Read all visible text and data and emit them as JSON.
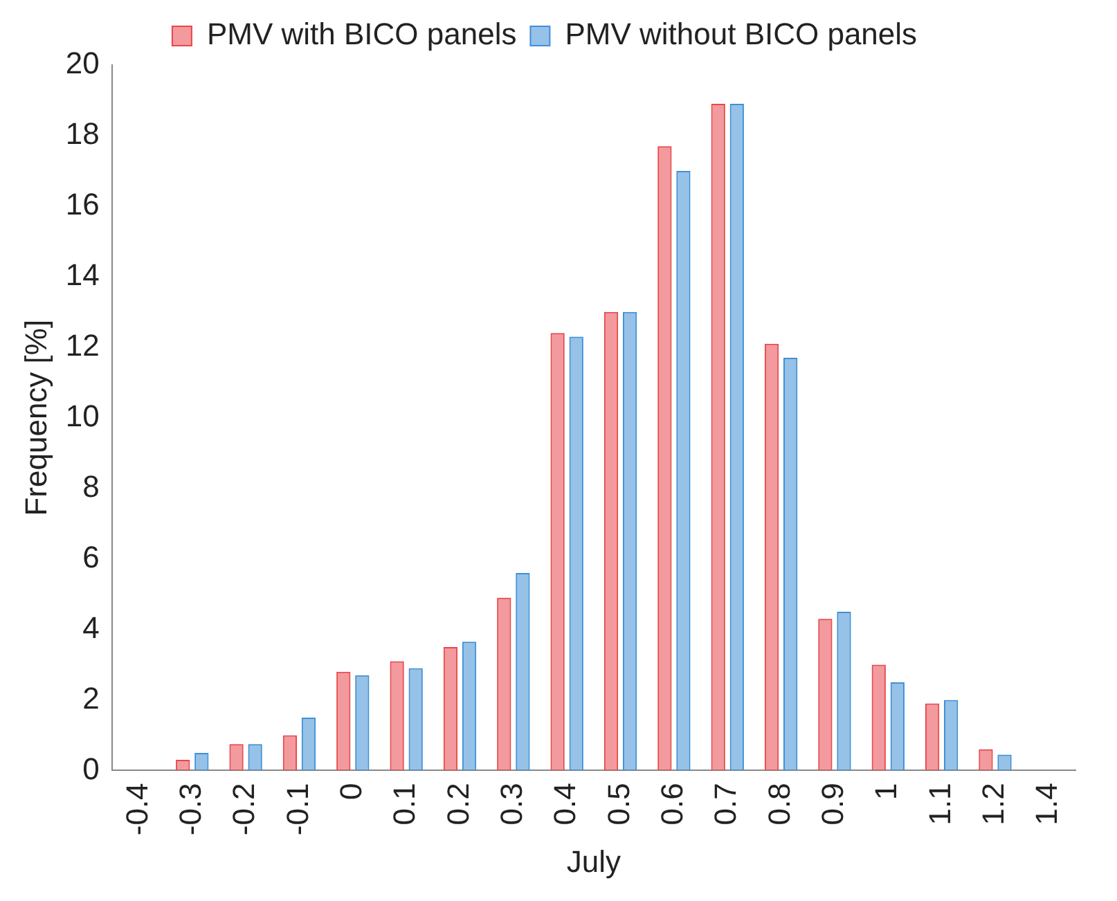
{
  "chart_data": {
    "type": "bar",
    "xlabel": "July",
    "ylabel": "Frequency [%]",
    "categories": [
      "-0.4",
      "-0.3",
      "-0.2",
      "-0.1",
      "0",
      "0.1",
      "0.2",
      "0.3",
      "0.4",
      "0.5",
      "0.6",
      "0.7",
      "0.8",
      "0.9",
      "1",
      "1.1",
      "1.2",
      "1.4"
    ],
    "series": [
      {
        "name": "PMV with BICO panels",
        "color": "#e8474c",
        "values": [
          0,
          0.3,
          0.75,
          1.0,
          2.8,
          3.1,
          3.5,
          4.9,
          12.4,
          13.0,
          17.7,
          18.9,
          12.1,
          4.3,
          3.0,
          1.9,
          0.6,
          0
        ]
      },
      {
        "name": "PMV without BICO panels",
        "color": "#3f8fd6",
        "values": [
          0,
          0.5,
          0.75,
          1.5,
          2.7,
          2.9,
          3.65,
          5.6,
          12.3,
          13.0,
          17.0,
          18.9,
          11.7,
          4.5,
          2.5,
          2.0,
          0.45,
          0
        ]
      }
    ],
    "ylim": [
      0,
      20
    ],
    "yticks": [
      0,
      2,
      4,
      6,
      8,
      10,
      12,
      14,
      16,
      18,
      20
    ],
    "grid": false,
    "legend": "top"
  }
}
